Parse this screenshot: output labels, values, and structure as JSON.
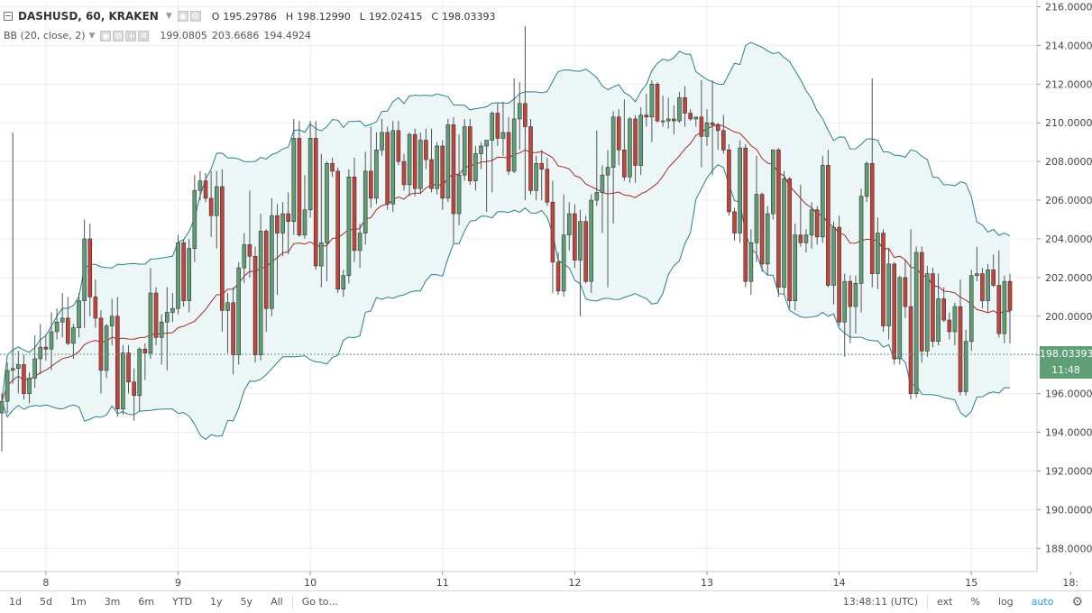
{
  "legend": {
    "symbol": "DASHUSD, 60, KRAKEN",
    "open_label": "O",
    "open": "195.29786",
    "high_label": "H",
    "high": "198.12990",
    "low_label": "L",
    "low": "192.02415",
    "close_label": "C",
    "close": "198.03393",
    "bb_label": "BB (20, close, 2)",
    "bb_middle": "199.0805",
    "bb_upper": "203.6686",
    "bb_lower": "194.4924"
  },
  "last_price": {
    "price": "198.03393",
    "countdown": "11:48",
    "value": 198.03393
  },
  "toolbar": {
    "ranges": [
      "1d",
      "5d",
      "1m",
      "3m",
      "6m",
      "YTD",
      "1y",
      "5y",
      "All"
    ],
    "goto": "Go to...",
    "clock": "13:48:11 (UTC)",
    "ext": "ext",
    "pct": "%",
    "log": "log",
    "auto": "auto"
  },
  "colors": {
    "up": "#5f9f76",
    "down": "#c4433a",
    "band": "#2a7f8e",
    "band_fill": "#edf6f6",
    "middle": "#a52a2a",
    "grid": "#ececec"
  },
  "chart_data": {
    "type": "candlestick",
    "title": "DASHUSD, 60, KRAKEN",
    "x_tick_labels": [
      "8",
      "9",
      "10",
      "11",
      "12",
      "13",
      "14",
      "15",
      "18:"
    ],
    "x_tick_candle_index": [
      8,
      32,
      56,
      80,
      104,
      128,
      152,
      176,
      194
    ],
    "y_tick_labels": [
      "188.00000",
      "190.00000",
      "192.00000",
      "194.00000",
      "196.00000",
      "198.00000",
      "200.00000",
      "202.00000",
      "204.00000",
      "206.00000",
      "208.00000",
      "210.00000",
      "212.00000",
      "214.00000",
      "216.00000"
    ],
    "ylim": [
      186.8,
      216.35
    ],
    "candles": [
      [
        195,
        196,
        193,
        195.6
      ],
      [
        195.6,
        197.6,
        195,
        197.2
      ],
      [
        197.2,
        209.5,
        196.5,
        197.3
      ],
      [
        197.3,
        198.2,
        196,
        197.5
      ],
      [
        197.5,
        198,
        195.7,
        196
      ],
      [
        196,
        197.1,
        195.5,
        196.8
      ],
      [
        196.8,
        199,
        196.3,
        197.8
      ],
      [
        197.8,
        199.6,
        197,
        198.4
      ],
      [
        198.4,
        199,
        197.7,
        198.3
      ],
      [
        198.3,
        200.2,
        197.2,
        199.2
      ],
      [
        199.2,
        200.4,
        198.8,
        199.7
      ],
      [
        199.7,
        201.2,
        198.9,
        199.9
      ],
      [
        199.9,
        201,
        198.5,
        198.6
      ],
      [
        198.6,
        199.6,
        197.8,
        199.4
      ],
      [
        199.4,
        201.2,
        198.9,
        200.8
      ],
      [
        200.8,
        205,
        199.4,
        204
      ],
      [
        204,
        204.8,
        200,
        201
      ],
      [
        201,
        201.9,
        199.4,
        199.9
      ],
      [
        199.9,
        200.3,
        196,
        197.2
      ],
      [
        197.2,
        199.6,
        196.8,
        199.5
      ],
      [
        199.5,
        200.9,
        198.5,
        200
      ],
      [
        200,
        201,
        194.8,
        195.2
      ],
      [
        195.2,
        198.5,
        194.9,
        198.1
      ],
      [
        198.1,
        198.5,
        196,
        196.6
      ],
      [
        196.6,
        197.3,
        194.6,
        195.9
      ],
      [
        195.9,
        198.4,
        195.1,
        198.3
      ],
      [
        198.3,
        198.6,
        196.7,
        198.1
      ],
      [
        198.1,
        202.5,
        197.8,
        201.2
      ],
      [
        201.2,
        201.5,
        198.5,
        198.9
      ],
      [
        198.9,
        200.1,
        197.5,
        199.7
      ],
      [
        199.7,
        201.5,
        197.2,
        200.2
      ],
      [
        200.2,
        201.2,
        199.7,
        200.4
      ],
      [
        200.4,
        204.2,
        200.1,
        203.8
      ],
      [
        203.8,
        204,
        200.5,
        200.8
      ],
      [
        200.8,
        204,
        200.2,
        203.5
      ],
      [
        203.5,
        207.3,
        202.8,
        206.5
      ],
      [
        206.5,
        207.5,
        206,
        207
      ],
      [
        207,
        207.4,
        205.9,
        206.1
      ],
      [
        206.1,
        207.5,
        204.1,
        205.2
      ],
      [
        205.2,
        207.5,
        203.5,
        206.7
      ],
      [
        206.7,
        207.6,
        199.2,
        200.3
      ],
      [
        200.3,
        201.2,
        198.1,
        200.7
      ],
      [
        200.7,
        201.5,
        197,
        198
      ],
      [
        198,
        202.8,
        197.5,
        202.5
      ],
      [
        202.5,
        204.3,
        201.7,
        203.7
      ],
      [
        203.7,
        206.5,
        202,
        203.1
      ],
      [
        203.1,
        203.6,
        197.6,
        198
      ],
      [
        198,
        205.3,
        197.7,
        204.4
      ],
      [
        204.4,
        204.5,
        199.2,
        200.4
      ],
      [
        200.4,
        206.1,
        200,
        205.2
      ],
      [
        205.2,
        205.8,
        201.1,
        204.3
      ],
      [
        204.3,
        205.9,
        203.1,
        205.3
      ],
      [
        205.3,
        206.4,
        203.2,
        204.9
      ],
      [
        204.9,
        210.2,
        204.2,
        209.2
      ],
      [
        209.2,
        210.1,
        204.1,
        204.2
      ],
      [
        204.2,
        207.3,
        204,
        205.5
      ],
      [
        205.5,
        210.1,
        205.1,
        209.2
      ],
      [
        209.2,
        210.1,
        202.4,
        202.6
      ],
      [
        202.6,
        208.4,
        201.5,
        203.8
      ],
      [
        203.8,
        208,
        201.8,
        207.9
      ],
      [
        207.9,
        208.2,
        207.2,
        207.5
      ],
      [
        207.5,
        207.7,
        201.2,
        201.4
      ],
      [
        201.4,
        202.4,
        201,
        202.1
      ],
      [
        202.1,
        207.6,
        201.7,
        207.2
      ],
      [
        207.2,
        208.2,
        202.8,
        203.4
      ],
      [
        203.4,
        204.8,
        202.5,
        204.3
      ],
      [
        204.3,
        208.5,
        203.7,
        207.5
      ],
      [
        207.5,
        209.8,
        205.6,
        206.1
      ],
      [
        206.1,
        209.5,
        205.8,
        208.6
      ],
      [
        208.6,
        210.2,
        208.3,
        209.5
      ],
      [
        209.5,
        209.8,
        205.5,
        205.8
      ],
      [
        205.8,
        210.1,
        205.4,
        209.6
      ],
      [
        209.6,
        210.1,
        207.8,
        208
      ],
      [
        208,
        208.4,
        206.5,
        206.8
      ],
      [
        206.8,
        209.5,
        206.2,
        209.4
      ],
      [
        209.4,
        209.7,
        206.2,
        206.6
      ],
      [
        206.6,
        209.5,
        206.3,
        209.1
      ],
      [
        209.1,
        209.7,
        207.6,
        208.1
      ],
      [
        208.1,
        209.7,
        206.4,
        206.6
      ],
      [
        206.6,
        209,
        206.3,
        208.8
      ],
      [
        208.8,
        209.1,
        205.5,
        206.1
      ],
      [
        206.1,
        210.2,
        205.9,
        209.9
      ],
      [
        209.9,
        210.3,
        203.8,
        205.3
      ],
      [
        205.3,
        209.4,
        204.7,
        207.3
      ],
      [
        207.3,
        210.2,
        207,
        209.8
      ],
      [
        209.8,
        210.2,
        206.8,
        207
      ],
      [
        207,
        208.8,
        206.5,
        208.4
      ],
      [
        208.4,
        209,
        207.6,
        208.8
      ],
      [
        208.8,
        208.9,
        205.4,
        209.1
      ],
      [
        209.1,
        210.6,
        206.4,
        210.5
      ],
      [
        210.5,
        211,
        208.8,
        209.2
      ],
      [
        209.2,
        211.1,
        208.3,
        209.5
      ],
      [
        209.5,
        210.3,
        207.3,
        207.5
      ],
      [
        207.5,
        212.3,
        207.4,
        210.2
      ],
      [
        210.2,
        212.1,
        208.6,
        211
      ],
      [
        211,
        215,
        206,
        209.8
      ],
      [
        209.8,
        210.2,
        206.3,
        206.5
      ],
      [
        206.5,
        208.3,
        206,
        207.9
      ],
      [
        207.9,
        208.6,
        206,
        207.6
      ],
      [
        207.6,
        208.2,
        205.7,
        205.9
      ],
      [
        205.9,
        207,
        201.2,
        202.8
      ],
      [
        202.8,
        203.3,
        201.1,
        201.3
      ],
      [
        201.3,
        206.3,
        201,
        204.2
      ],
      [
        204.2,
        205.9,
        203.4,
        205.3
      ],
      [
        205.3,
        205.8,
        202.5,
        202.9
      ],
      [
        202.9,
        205.5,
        200,
        204.9
      ],
      [
        204.9,
        205.2,
        201.7,
        201.8
      ],
      [
        201.8,
        206.3,
        201.2,
        206
      ],
      [
        206,
        209.6,
        205.7,
        206.4
      ],
      [
        206.4,
        207.8,
        204.3,
        207.3
      ],
      [
        207.3,
        208.6,
        201.5,
        207.7
      ],
      [
        207.7,
        210.6,
        204.8,
        210.3
      ],
      [
        210.3,
        210.7,
        207.8,
        208.6
      ],
      [
        208.6,
        211.2,
        207,
        207.2
      ],
      [
        207.2,
        210.3,
        206.9,
        210.2
      ],
      [
        210.2,
        210.4,
        206.9,
        207.8
      ],
      [
        207.8,
        210.8,
        207.3,
        210.4
      ],
      [
        210.4,
        211.5,
        209.8,
        210.3
      ],
      [
        210.3,
        212.2,
        209,
        212
      ],
      [
        212,
        212.1,
        210,
        210.1
      ],
      [
        210.1,
        211.4,
        209.8,
        210.1
      ],
      [
        210.1,
        211.3,
        209.7,
        210.2
      ],
      [
        210.2,
        210.9,
        209.4,
        210.1
      ],
      [
        210.1,
        211.6,
        210,
        211.3
      ],
      [
        211.3,
        211.9,
        209.8,
        210.5
      ],
      [
        210.5,
        210.7,
        210.1,
        210.2
      ],
      [
        210.2,
        210.3,
        209.8,
        210.3
      ],
      [
        210.3,
        212.2,
        207.7,
        209.3
      ],
      [
        209.3,
        210.7,
        208.8,
        210
      ],
      [
        210,
        212.2,
        207.3,
        209.9
      ],
      [
        209.9,
        210,
        208.6,
        209.6
      ],
      [
        209.6,
        210.4,
        208.4,
        208.6
      ],
      [
        208.6,
        208.9,
        205.2,
        205.4
      ],
      [
        205.4,
        205.6,
        203.9,
        204.3
      ],
      [
        204.3,
        209.1,
        203.8,
        208.7
      ],
      [
        208.7,
        208.9,
        201.5,
        201.8
      ],
      [
        201.8,
        204.5,
        201.1,
        203.8
      ],
      [
        203.8,
        208.3,
        202.8,
        206.3
      ],
      [
        206.3,
        206.4,
        202.3,
        202.7
      ],
      [
        202.7,
        205.7,
        202.1,
        205.3
      ],
      [
        205.3,
        208.6,
        205,
        208.6
      ],
      [
        208.6,
        208.7,
        201,
        201.5
      ],
      [
        201.5,
        207.5,
        201.1,
        207.1
      ],
      [
        207.1,
        207.2,
        200.4,
        200.8
      ],
      [
        200.8,
        204.8,
        200.3,
        204.2
      ],
      [
        204.2,
        206.8,
        203.6,
        203.8
      ],
      [
        203.8,
        204.5,
        203.3,
        204.2
      ],
      [
        204.2,
        205.9,
        203.5,
        205.5
      ],
      [
        205.5,
        205.7,
        203.7,
        204.1
      ],
      [
        204.1,
        208.3,
        203.8,
        207.8
      ],
      [
        207.8,
        208.6,
        201.5,
        201.6
      ],
      [
        201.6,
        204.9,
        200.6,
        204.6
      ],
      [
        204.6,
        205.2,
        199.5,
        199.7
      ],
      [
        199.7,
        202.2,
        197.9,
        201.8
      ],
      [
        201.8,
        202.1,
        198.6,
        200.5
      ],
      [
        200.5,
        202.1,
        199.1,
        201.7
      ],
      [
        201.7,
        206.6,
        200.2,
        206.2
      ],
      [
        206.2,
        208,
        205.9,
        207.9
      ],
      [
        207.9,
        212.3,
        201.5,
        202.2
      ],
      [
        202.2,
        205.1,
        201.4,
        204.3
      ],
      [
        204.3,
        204.5,
        199.2,
        199.5
      ],
      [
        199.5,
        203.5,
        198.8,
        202.7
      ],
      [
        202.7,
        202.8,
        197.5,
        197.8
      ],
      [
        197.8,
        202.1,
        197.5,
        202
      ],
      [
        202,
        202.9,
        199.9,
        200.5
      ],
      [
        200.5,
        204.5,
        195.7,
        196
      ],
      [
        196,
        203.6,
        195.8,
        203.3
      ],
      [
        203.3,
        203.6,
        197.6,
        198.2
      ],
      [
        198.2,
        202.6,
        197.9,
        202.2
      ],
      [
        202.2,
        202.5,
        198.4,
        198.7
      ],
      [
        198.7,
        202.2,
        198.5,
        200.9
      ],
      [
        200.9,
        201.5,
        199.7,
        199.8
      ],
      [
        199.8,
        200.2,
        198.8,
        199.2
      ],
      [
        199.2,
        200.7,
        198.5,
        200.5
      ],
      [
        200.5,
        201.9,
        195.9,
        196.1
      ],
      [
        196.1,
        199.3,
        195.9,
        198.7
      ],
      [
        198.7,
        202.4,
        198.2,
        202.1
      ],
      [
        202.1,
        203.6,
        201.8,
        202.2
      ],
      [
        202.2,
        202.5,
        200.4,
        200.8
      ],
      [
        200.8,
        202.7,
        200.2,
        202.4
      ],
      [
        202.4,
        203.2,
        201.5,
        201.6
      ],
      [
        201.6,
        203.4,
        198.9,
        199.1
      ],
      [
        199.1,
        202.1,
        198.6,
        201.8
      ],
      [
        201.8,
        202.2,
        198.6,
        200.3
      ]
    ]
  }
}
